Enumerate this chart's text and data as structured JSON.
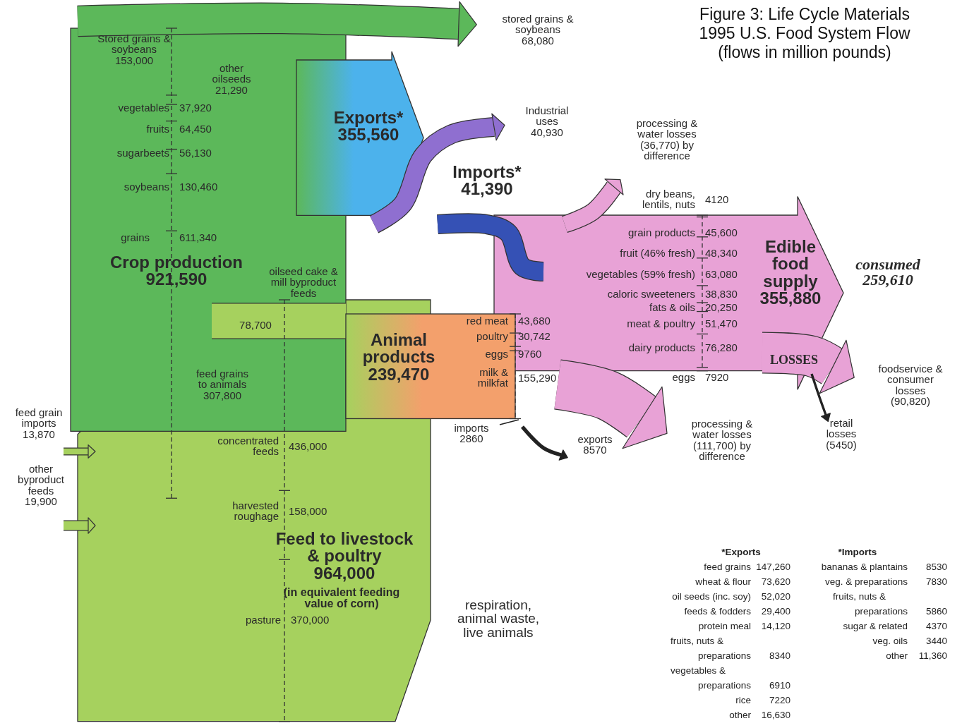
{
  "chart_data": [
    {
      "type": "other",
      "title": "Figure 3: Life Cycle  Materials 1995 U.S. Food System Flow",
      "subtitle": "(flows in million pounds)",
      "categories": [
        "Stored grains & soybeans",
        "other oilseeds",
        "vegetables",
        "fruits",
        "sugarbeets",
        "soybeans",
        "grains",
        "Crop production",
        "stored grains & soybeans",
        "Exports*",
        "Industrial uses",
        "Imports*",
        "processing & water losses",
        "dry beans, lentils, nuts",
        "grain products",
        "fruit (46% fresh)",
        "vegetables (59% fresh)",
        "caloric sweeteners",
        "fats & oils",
        "meat & poultry",
        "dairy products",
        "eggs",
        "Edible food supply",
        "consumed",
        "foodservice & consumer losses",
        "retail losses",
        "oilseed cake & mill byproduct feeds",
        "Animal products",
        "red meat",
        "poultry",
        "eggs",
        "milk & milkfat",
        "imports",
        "exports",
        "processing & water losses",
        "feed grains to animals",
        "feed grain imports",
        "other byproduct feeds",
        "concentrated feeds",
        "harvested roughage",
        "Feed to livestock & poultry",
        "pasture"
      ],
      "values": [
        153000,
        21290,
        37920,
        64450,
        56130,
        130460,
        611340,
        921590,
        68080,
        355560,
        40930,
        41390,
        36770,
        4120,
        45600,
        48340,
        63080,
        38830,
        20250,
        51470,
        76280,
        7920,
        355880,
        259610,
        90820,
        5450,
        78700,
        239470,
        43680,
        30742,
        9760,
        155290,
        2860,
        8570,
        111700,
        307800,
        13870,
        19900,
        436000,
        158000,
        964000,
        370000
      ],
      "value_labels": [
        "153,000",
        "21,290",
        "37,920",
        "64,450",
        "56,130",
        "130,460",
        "611,340",
        "921,590",
        "68,080",
        "355,560",
        "40,930",
        "41,390",
        "(36,770) by difference",
        "4120",
        "45,600",
        "48,340",
        "63,080",
        "38,830",
        "20,250",
        "51,470",
        "76,280",
        "7920",
        "355,880",
        "259,610",
        "(90,820)",
        "(5450)",
        "78,700",
        "239,470",
        "43,680",
        "30,742",
        "9760",
        "155,290",
        "2860",
        "8570",
        "(111,700) by difference",
        "307,800",
        "13,870",
        "19,900",
        "436,000",
        "158,000",
        "964,000",
        "370,000"
      ],
      "annotations": [
        "LOSSES",
        "(in equivalent feeding value of corn)",
        "respiration, animal waste, live animals"
      ]
    },
    {
      "type": "other",
      "title": "*Exports",
      "categories": [
        "feed grains",
        "wheat & flour",
        "oil seeds (inc. soy)",
        "feeds & fodders",
        "protein meal",
        "fruits, nuts & preparations",
        "vegetables & preparations",
        "rice",
        "other"
      ],
      "value_labels": [
        "147,260",
        "73,620",
        "52,020",
        "29,400",
        "14,120",
        "8340",
        "6910",
        "7220",
        "16,630"
      ]
    },
    {
      "type": "other",
      "title": "*Imports",
      "categories": [
        "bananas & plantains",
        "veg. & preparations",
        "fruits, nuts & preparations",
        "sugar & related",
        "veg. oils",
        "other"
      ],
      "value_labels": [
        "8530",
        "7830",
        "5860",
        "4370",
        "3440",
        "11,360"
      ]
    }
  ]
}
